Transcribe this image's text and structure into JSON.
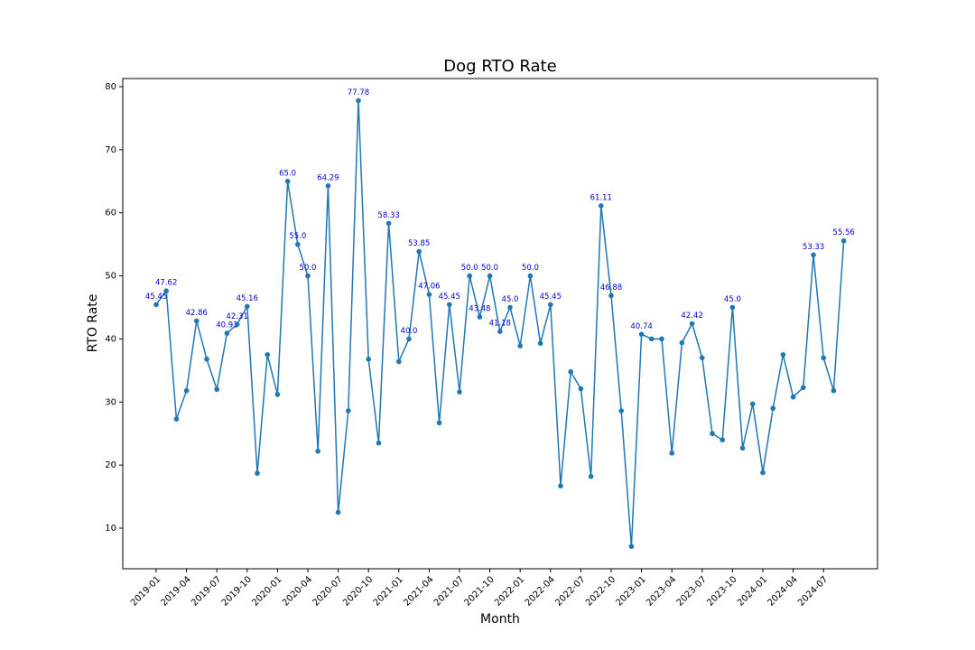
{
  "chart_data": {
    "type": "line",
    "title": "Dog RTO Rate",
    "x_label": "Month",
    "y_label": "RTO Rate",
    "categories": [
      "2019-01",
      null,
      null,
      "2019-04",
      null,
      null,
      "2019-07",
      null,
      null,
      "2019-10",
      null,
      null,
      "2020-01",
      null,
      null,
      "2020-04",
      null,
      null,
      "2020-07",
      null,
      null,
      "2020-10",
      null,
      null,
      "2021-01",
      null,
      null,
      "2021-04",
      null,
      null,
      "2021-07",
      null,
      null,
      "2021-10",
      null,
      null,
      "2022-01",
      null,
      null,
      "2022-04",
      null,
      null,
      "2022-07",
      null,
      null,
      "2022-10",
      null,
      null,
      "2023-01",
      null,
      null,
      "2023-04",
      null,
      null,
      "2023-07",
      null,
      null,
      "2023-10",
      null,
      null,
      "2024-01",
      null,
      null,
      "2024-04",
      null,
      null,
      "2024-07",
      null,
      null
    ],
    "values": [
      45.45,
      47.62,
      27.3,
      31.8,
      42.86,
      36.8,
      32.0,
      40.91,
      42.31,
      45.16,
      18.7,
      37.5,
      31.2,
      65.0,
      55.0,
      50.0,
      22.2,
      64.29,
      12.5,
      28.6,
      77.78,
      36.8,
      23.5,
      58.33,
      36.4,
      40.0,
      53.85,
      47.06,
      26.7,
      45.45,
      31.6,
      50.0,
      43.48,
      50.0,
      41.18,
      45.0,
      38.9,
      50.0,
      39.3,
      45.45,
      16.7,
      34.8,
      32.1,
      18.2,
      61.11,
      46.88,
      28.6,
      7.1,
      40.74,
      40.0,
      40.0,
      21.9,
      39.4,
      42.42,
      37.0,
      25.0,
      24.0,
      45.0,
      22.7,
      29.7,
      18.8,
      29.0,
      37.5,
      30.8,
      32.3,
      53.33,
      37.0,
      31.8,
      55.56
    ],
    "value_labels": [
      "45.45",
      "47.62",
      null,
      null,
      "42.86",
      null,
      null,
      "40.91",
      "42.31",
      "45.16",
      null,
      null,
      null,
      "65.0",
      "55.0",
      "50.0",
      null,
      "64.29",
      null,
      null,
      "77.78",
      null,
      null,
      "58.33",
      null,
      "40.0",
      "53.85",
      "47.06",
      null,
      "45.45",
      null,
      "50.0",
      "43.48",
      "50.0",
      "41.18",
      "45.0",
      null,
      "50.0",
      null,
      "45.45",
      null,
      null,
      null,
      null,
      "61.11",
      "46.88",
      null,
      null,
      "40.74",
      null,
      null,
      null,
      null,
      "42.42",
      null,
      null,
      null,
      "45.0",
      null,
      null,
      null,
      null,
      null,
      null,
      null,
      "53.33",
      null,
      null,
      "55.56"
    ],
    "color": "#1f77b4",
    "label_color": "#0000cc",
    "ylim": [
      3.56,
      81.29
    ],
    "yticks": [
      10,
      20,
      30,
      40,
      50,
      60,
      70,
      80
    ]
  }
}
